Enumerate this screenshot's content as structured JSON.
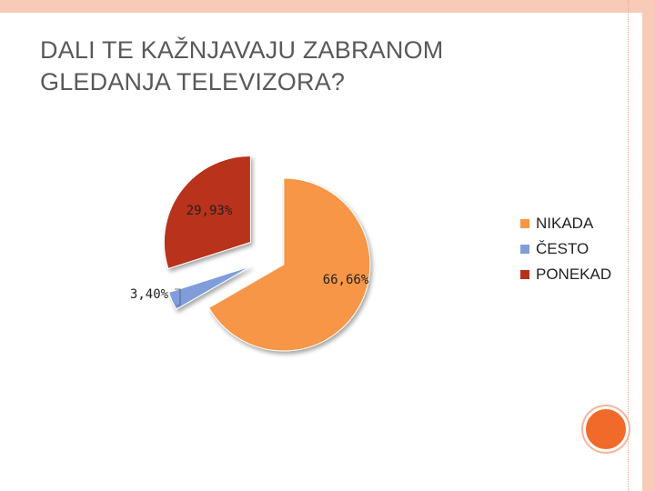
{
  "slide": {
    "title_line1": "DALI TE KAŽNJAVAJU ZABRANOM",
    "title_line2": "GLEDANJA TELEVIZORA?"
  },
  "colors": {
    "frame": "#f7cbb8",
    "accent_circle": "#f26a2a"
  },
  "chart_data": {
    "type": "pie",
    "exploded": true,
    "legend_position": "right",
    "slices": [
      {
        "name": "NIKADA",
        "value": 66.66,
        "label": "66,66%",
        "color": "#f79646"
      },
      {
        "name": "ČESTO",
        "value": 3.4,
        "label": "3,40%",
        "color": "#7f9ddb"
      },
      {
        "name": "PONEKAD",
        "value": 29.93,
        "label": "29,93%",
        "color": "#b8311b"
      }
    ]
  }
}
